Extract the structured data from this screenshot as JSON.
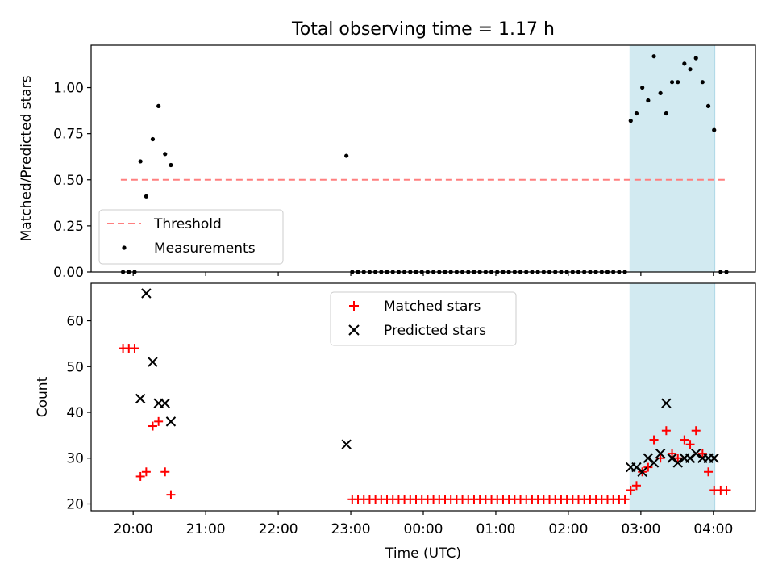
{
  "chart_data": {
    "title": "Total observing time = 1.17 h",
    "xlabel": "Time (UTC)",
    "x_unit": "hours (UTC, continuing past midnight)",
    "xlim": [
      19.42,
      28.58
    ],
    "x_ticks": [
      {
        "v": 20,
        "label": "20:00"
      },
      {
        "v": 21,
        "label": "21:00"
      },
      {
        "v": 22,
        "label": "22:00"
      },
      {
        "v": 23,
        "label": "23:00"
      },
      {
        "v": 24,
        "label": "00:00"
      },
      {
        "v": 25,
        "label": "01:00"
      },
      {
        "v": 26,
        "label": "02:00"
      },
      {
        "v": 27,
        "label": "03:00"
      },
      {
        "v": 28,
        "label": "04:00"
      }
    ],
    "shaded_interval": [
      26.85,
      28.02
    ],
    "shade_color": "#add8e6",
    "top": {
      "type": "scatter",
      "ylabel": "Matched/Predicted stars",
      "ylim": [
        0,
        1.23
      ],
      "y_ticks": [
        {
          "v": 0,
          "label": "0.00"
        },
        {
          "v": 0.25,
          "label": "0.25"
        },
        {
          "v": 0.5,
          "label": "0.50"
        },
        {
          "v": 0.75,
          "label": "0.75"
        },
        {
          "v": 1.0,
          "label": "1.00"
        }
      ],
      "threshold": {
        "name": "Threshold",
        "value": 0.5,
        "x_range": [
          19.83,
          28.18
        ],
        "color": "#ff7f7f"
      },
      "measurements": {
        "name": "Measurements",
        "color": "#000000",
        "points": [
          [
            19.86,
            0
          ],
          [
            19.94,
            0
          ],
          [
            20.02,
            0
          ],
          [
            20.1,
            0.6
          ],
          [
            20.18,
            0.41
          ],
          [
            20.27,
            0.72
          ],
          [
            20.35,
            0.9
          ],
          [
            20.44,
            0.64
          ],
          [
            20.52,
            0.58
          ],
          [
            22.94,
            0.63
          ],
          [
            23.02,
            0
          ],
          [
            23.1,
            0
          ],
          [
            23.18,
            0
          ],
          [
            23.26,
            0
          ],
          [
            23.34,
            0
          ],
          [
            23.42,
            0
          ],
          [
            23.5,
            0
          ],
          [
            23.58,
            0
          ],
          [
            23.66,
            0
          ],
          [
            23.74,
            0
          ],
          [
            23.82,
            0
          ],
          [
            23.9,
            0
          ],
          [
            23.98,
            0
          ],
          [
            24.06,
            0
          ],
          [
            24.14,
            0
          ],
          [
            24.22,
            0
          ],
          [
            24.3,
            0
          ],
          [
            24.38,
            0
          ],
          [
            24.46,
            0
          ],
          [
            24.54,
            0
          ],
          [
            24.62,
            0
          ],
          [
            24.7,
            0
          ],
          [
            24.78,
            0
          ],
          [
            24.86,
            0
          ],
          [
            24.94,
            0
          ],
          [
            25.02,
            0
          ],
          [
            25.1,
            0
          ],
          [
            25.18,
            0
          ],
          [
            25.26,
            0
          ],
          [
            25.34,
            0
          ],
          [
            25.42,
            0
          ],
          [
            25.5,
            0
          ],
          [
            25.58,
            0
          ],
          [
            25.66,
            0
          ],
          [
            25.74,
            0
          ],
          [
            25.82,
            0
          ],
          [
            25.9,
            0
          ],
          [
            25.98,
            0
          ],
          [
            26.06,
            0
          ],
          [
            26.14,
            0
          ],
          [
            26.22,
            0
          ],
          [
            26.3,
            0
          ],
          [
            26.38,
            0
          ],
          [
            26.46,
            0
          ],
          [
            26.54,
            0
          ],
          [
            26.62,
            0
          ],
          [
            26.7,
            0
          ],
          [
            26.78,
            0
          ],
          [
            26.86,
            0.82
          ],
          [
            26.94,
            0.86
          ],
          [
            27.02,
            1.0
          ],
          [
            27.1,
            0.93
          ],
          [
            27.18,
            1.17
          ],
          [
            27.27,
            0.97
          ],
          [
            27.35,
            0.86
          ],
          [
            27.43,
            1.03
          ],
          [
            27.51,
            1.03
          ],
          [
            27.6,
            1.13
          ],
          [
            27.68,
            1.1
          ],
          [
            27.76,
            1.16
          ],
          [
            27.85,
            1.03
          ],
          [
            27.93,
            0.9
          ],
          [
            28.01,
            0.77
          ],
          [
            28.1,
            0
          ],
          [
            28.18,
            0
          ]
        ]
      },
      "legend": {
        "placement": "lower-left"
      }
    },
    "bottom": {
      "type": "scatter",
      "ylabel": "Count",
      "ylim": [
        18.5,
        68.2
      ],
      "y_ticks": [
        {
          "v": 20,
          "label": "20"
        },
        {
          "v": 30,
          "label": "30"
        },
        {
          "v": 40,
          "label": "40"
        },
        {
          "v": 50,
          "label": "50"
        },
        {
          "v": 60,
          "label": "60"
        }
      ],
      "matched": {
        "name": "Matched stars",
        "color": "#ff0000",
        "points": [
          [
            19.86,
            54
          ],
          [
            19.94,
            54
          ],
          [
            20.02,
            54
          ],
          [
            20.1,
            26
          ],
          [
            20.18,
            27
          ],
          [
            20.27,
            37
          ],
          [
            20.35,
            38
          ],
          [
            20.44,
            27
          ],
          [
            20.52,
            22
          ],
          [
            23.02,
            21
          ],
          [
            23.1,
            21
          ],
          [
            23.18,
            21
          ],
          [
            23.26,
            21
          ],
          [
            23.34,
            21
          ],
          [
            23.42,
            21
          ],
          [
            23.5,
            21
          ],
          [
            23.58,
            21
          ],
          [
            23.66,
            21
          ],
          [
            23.74,
            21
          ],
          [
            23.82,
            21
          ],
          [
            23.9,
            21
          ],
          [
            23.98,
            21
          ],
          [
            24.06,
            21
          ],
          [
            24.14,
            21
          ],
          [
            24.22,
            21
          ],
          [
            24.3,
            21
          ],
          [
            24.38,
            21
          ],
          [
            24.46,
            21
          ],
          [
            24.54,
            21
          ],
          [
            24.62,
            21
          ],
          [
            24.7,
            21
          ],
          [
            24.78,
            21
          ],
          [
            24.86,
            21
          ],
          [
            24.94,
            21
          ],
          [
            25.02,
            21
          ],
          [
            25.1,
            21
          ],
          [
            25.18,
            21
          ],
          [
            25.26,
            21
          ],
          [
            25.34,
            21
          ],
          [
            25.42,
            21
          ],
          [
            25.5,
            21
          ],
          [
            25.58,
            21
          ],
          [
            25.66,
            21
          ],
          [
            25.74,
            21
          ],
          [
            25.82,
            21
          ],
          [
            25.9,
            21
          ],
          [
            25.98,
            21
          ],
          [
            26.06,
            21
          ],
          [
            26.14,
            21
          ],
          [
            26.22,
            21
          ],
          [
            26.3,
            21
          ],
          [
            26.38,
            21
          ],
          [
            26.46,
            21
          ],
          [
            26.54,
            21
          ],
          [
            26.62,
            21
          ],
          [
            26.7,
            21
          ],
          [
            26.78,
            21
          ],
          [
            26.86,
            23
          ],
          [
            26.94,
            24
          ],
          [
            27.02,
            27
          ],
          [
            27.1,
            28
          ],
          [
            27.18,
            34
          ],
          [
            27.27,
            30
          ],
          [
            27.35,
            36
          ],
          [
            27.43,
            31
          ],
          [
            27.51,
            30
          ],
          [
            27.6,
            34
          ],
          [
            27.68,
            33
          ],
          [
            27.76,
            36
          ],
          [
            27.85,
            31
          ],
          [
            27.93,
            27
          ],
          [
            28.01,
            23
          ],
          [
            28.1,
            23
          ],
          [
            28.18,
            23
          ]
        ]
      },
      "predicted": {
        "name": "Predicted stars",
        "color": "#000000",
        "points": [
          [
            20.1,
            43
          ],
          [
            20.18,
            66
          ],
          [
            20.27,
            51
          ],
          [
            20.35,
            42
          ],
          [
            20.44,
            42
          ],
          [
            20.52,
            38
          ],
          [
            22.94,
            33
          ],
          [
            26.86,
            28
          ],
          [
            26.94,
            28
          ],
          [
            27.02,
            27
          ],
          [
            27.1,
            30
          ],
          [
            27.18,
            29
          ],
          [
            27.27,
            31
          ],
          [
            27.35,
            42
          ],
          [
            27.43,
            30
          ],
          [
            27.51,
            29
          ],
          [
            27.6,
            30
          ],
          [
            27.68,
            30
          ],
          [
            27.76,
            31
          ],
          [
            27.85,
            30
          ],
          [
            27.93,
            30
          ],
          [
            28.01,
            30
          ]
        ]
      },
      "legend": {
        "placement": "upper-center"
      }
    }
  }
}
